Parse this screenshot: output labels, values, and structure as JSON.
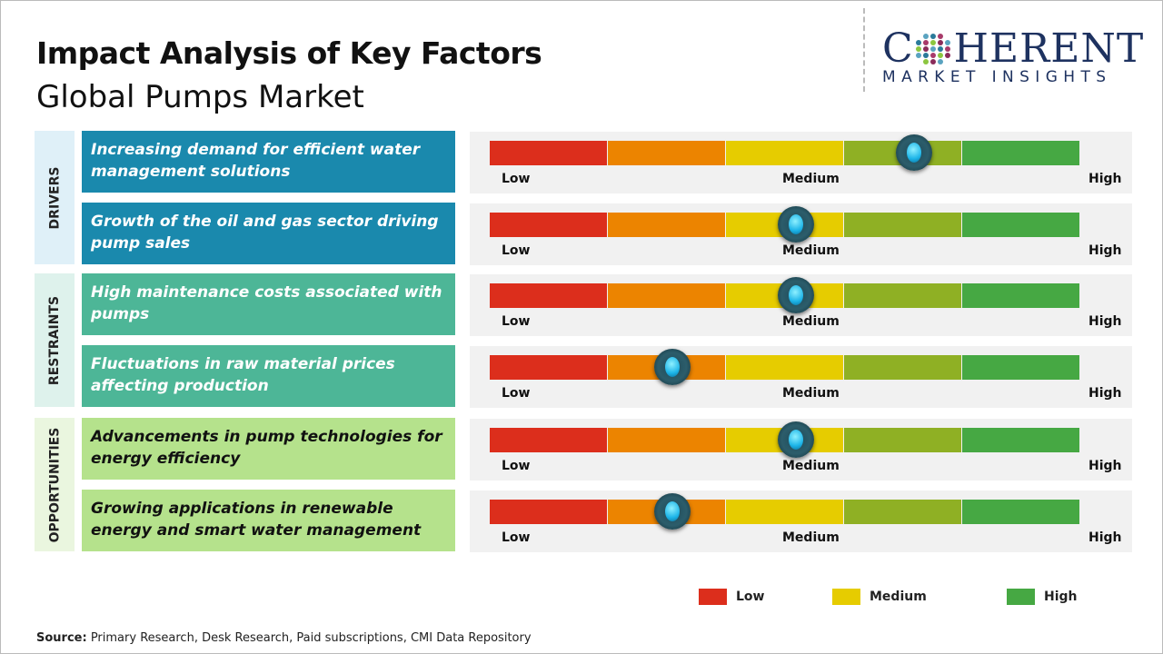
{
  "title": "Impact Analysis of Key Factors",
  "subtitle": "Global Pumps Market",
  "logo": {
    "main": "COHERENT",
    "sub": "MARKET INSIGHTS"
  },
  "scale": {
    "low": "Low",
    "medium": "Medium",
    "high": "High",
    "colors": [
      "#dc2e1c",
      "#ec8400",
      "#e6cc00",
      "#8fb024",
      "#46a843"
    ]
  },
  "groups": [
    {
      "label": "DRIVERS",
      "bg": "#dff0f8",
      "item_color": "#1a89ad",
      "text_color": "#ffffff"
    },
    {
      "label": "RESTRAINTS",
      "bg": "#def2ec",
      "item_color": "#4db697",
      "text_color": "#ffffff"
    },
    {
      "label": "OPPORTUNITIES",
      "bg": "#eaf6df",
      "item_color": "#b5e28c",
      "text_color": "#111111"
    }
  ],
  "factors": [
    {
      "group": 0,
      "text": "Increasing demand for efficient water management solutions",
      "impact_pct": 72
    },
    {
      "group": 0,
      "text": "Growth of the oil and gas sector driving pump sales",
      "impact_pct": 52
    },
    {
      "group": 1,
      "text": "High maintenance costs associated with pumps",
      "impact_pct": 52
    },
    {
      "group": 1,
      "text": "Fluctuations in raw material prices affecting production",
      "impact_pct": 31
    },
    {
      "group": 2,
      "text": "Advancements in pump technologies for energy efficiency",
      "impact_pct": 52
    },
    {
      "group": 2,
      "text": "Growing applications in renewable energy and smart water management",
      "impact_pct": 31
    }
  ],
  "legend": [
    {
      "label": "Low",
      "color": "#dc2e1c"
    },
    {
      "label": "Medium",
      "color": "#e6cc00"
    },
    {
      "label": "High",
      "color": "#46a843"
    }
  ],
  "source": {
    "label": "Source:",
    "text": " Primary Research, Desk Research, Paid subscriptions, CMI Data Repository"
  }
}
